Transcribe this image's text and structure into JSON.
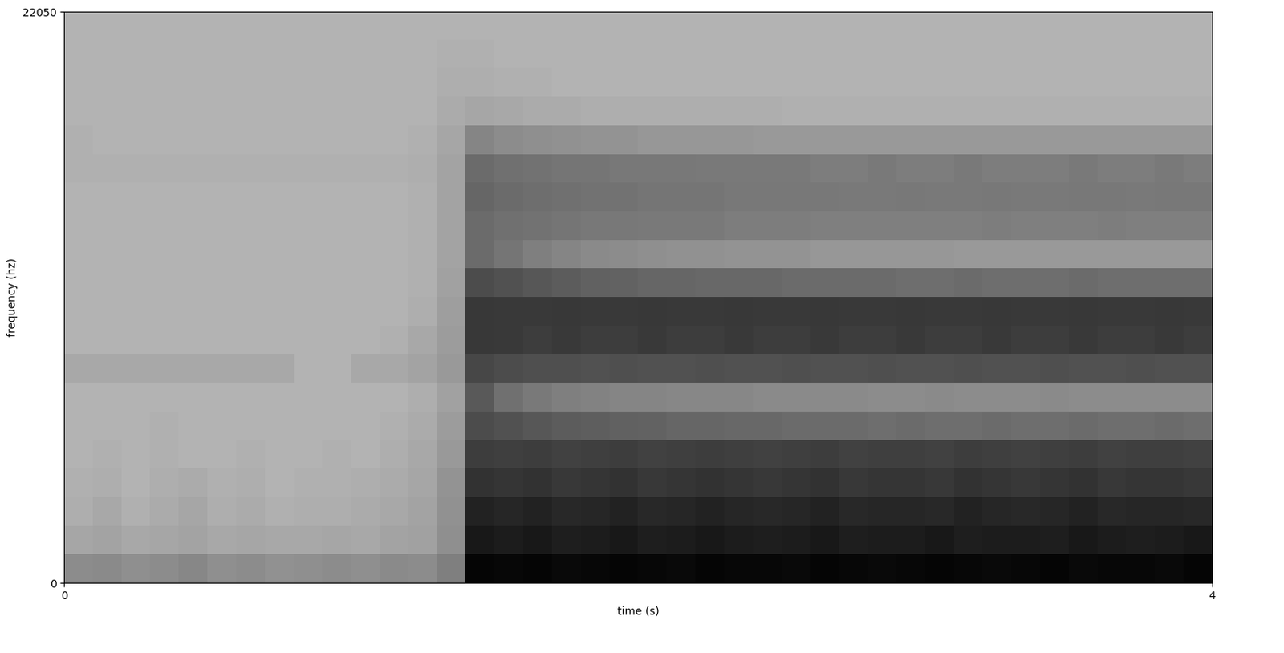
{
  "chart_data": {
    "type": "heatmap",
    "xlabel": "time (s)",
    "ylabel": "frequency (hz)",
    "xlim": [
      0,
      4
    ],
    "xticks": [
      0,
      4
    ],
    "ylim": [
      0,
      22050
    ],
    "yticks": [
      0,
      22050
    ],
    "color": "gray_r",
    "color_range": [
      0,
      10
    ],
    "values": [
      [
        4.5,
        4.6,
        4.4,
        4.5,
        4.7,
        4.4,
        4.5,
        4.3,
        4.4,
        4.5,
        4.4,
        4.6,
        4.5,
        5.0,
        9.8,
        9.7,
        9.8,
        9.6,
        9.7,
        9.8,
        9.7,
        9.6,
        9.8,
        9.7,
        9.7,
        9.6,
        9.8,
        9.7,
        9.6,
        9.7,
        9.8,
        9.7,
        9.6,
        9.7,
        9.8,
        9.6,
        9.7,
        9.7,
        9.6,
        9.8
      ],
      [
        3.5,
        3.6,
        3.4,
        3.5,
        3.6,
        3.4,
        3.5,
        3.4,
        3.4,
        3.5,
        3.4,
        3.6,
        3.7,
        4.4,
        9.0,
        8.9,
        9.0,
        8.8,
        8.9,
        9.0,
        8.8,
        8.9,
        9.0,
        8.9,
        8.8,
        8.9,
        9.0,
        8.8,
        8.9,
        8.9,
        9.0,
        8.8,
        8.9,
        8.9,
        8.8,
        9.0,
        8.9,
        8.8,
        8.9,
        9.0
      ],
      [
        3.2,
        3.4,
        3.1,
        3.3,
        3.5,
        3.2,
        3.3,
        3.1,
        3.2,
        3.2,
        3.3,
        3.4,
        3.6,
        4.3,
        8.6,
        8.5,
        8.6,
        8.4,
        8.5,
        8.6,
        8.4,
        8.5,
        8.6,
        8.5,
        8.4,
        8.5,
        8.6,
        8.4,
        8.5,
        8.5,
        8.4,
        8.6,
        8.5,
        8.4,
        8.5,
        8.6,
        8.4,
        8.5,
        8.5,
        8.4
      ],
      [
        3.1,
        3.2,
        3.0,
        3.2,
        3.3,
        3.1,
        3.2,
        3.0,
        3.1,
        3.1,
        3.2,
        3.3,
        3.5,
        4.2,
        8.0,
        7.9,
        8.0,
        7.8,
        7.9,
        8.0,
        7.8,
        7.9,
        8.0,
        7.9,
        7.8,
        7.9,
        8.0,
        7.8,
        7.9,
        7.9,
        7.8,
        8.0,
        7.9,
        7.8,
        7.9,
        8.0,
        7.8,
        7.9,
        7.9,
        7.8
      ],
      [
        3.0,
        3.1,
        3.0,
        3.1,
        3.0,
        3.0,
        3.1,
        3.0,
        3.0,
        3.1,
        3.0,
        3.2,
        3.4,
        4.0,
        7.6,
        7.5,
        7.6,
        7.4,
        7.5,
        7.6,
        7.4,
        7.5,
        7.6,
        7.5,
        7.4,
        7.5,
        7.6,
        7.4,
        7.5,
        7.5,
        7.4,
        7.6,
        7.5,
        7.4,
        7.5,
        7.6,
        7.4,
        7.5,
        7.5,
        7.4
      ],
      [
        3.0,
        3.0,
        3.0,
        3.1,
        3.0,
        3.0,
        3.0,
        3.0,
        3.0,
        3.0,
        3.0,
        3.1,
        3.3,
        3.9,
        7.0,
        6.8,
        6.6,
        6.4,
        6.3,
        6.2,
        6.1,
        6.0,
        6.0,
        5.9,
        5.9,
        5.8,
        5.8,
        5.8,
        5.7,
        5.8,
        5.7,
        5.7,
        5.8,
        5.7,
        5.7,
        5.8,
        5.7,
        5.7,
        5.8,
        5.7
      ],
      [
        3.0,
        3.0,
        3.0,
        3.0,
        3.0,
        3.0,
        3.0,
        3.0,
        3.0,
        3.0,
        3.0,
        3.0,
        3.2,
        3.7,
        6.5,
        5.6,
        5.2,
        5.0,
        4.9,
        4.8,
        4.8,
        4.7,
        4.7,
        4.7,
        4.6,
        4.6,
        4.6,
        4.6,
        4.5,
        4.5,
        4.6,
        4.5,
        4.5,
        4.5,
        4.6,
        4.5,
        4.5,
        4.5,
        4.5,
        4.5
      ],
      [
        3.4,
        3.4,
        3.4,
        3.4,
        3.4,
        3.4,
        3.4,
        3.4,
        3.0,
        3.0,
        3.4,
        3.4,
        3.6,
        4.0,
        7.2,
        7.0,
        6.9,
        6.9,
        6.8,
        6.9,
        6.8,
        6.8,
        6.9,
        6.8,
        6.8,
        6.9,
        6.8,
        6.8,
        6.9,
        6.8,
        6.8,
        6.9,
        6.8,
        6.8,
        6.9,
        6.8,
        6.8,
        6.9,
        6.8,
        6.8
      ],
      [
        3.0,
        3.0,
        3.0,
        3.0,
        3.0,
        3.0,
        3.0,
        3.0,
        3.0,
        3.0,
        3.0,
        3.1,
        3.4,
        3.9,
        7.8,
        7.7,
        7.6,
        7.7,
        7.6,
        7.6,
        7.7,
        7.6,
        7.6,
        7.7,
        7.6,
        7.6,
        7.7,
        7.6,
        7.6,
        7.7,
        7.6,
        7.6,
        7.7,
        7.6,
        7.6,
        7.7,
        7.6,
        7.6,
        7.7,
        7.6
      ],
      [
        3.0,
        3.0,
        3.0,
        3.0,
        3.0,
        3.0,
        3.0,
        3.0,
        3.0,
        3.0,
        3.0,
        3.0,
        3.2,
        3.8,
        7.8,
        7.7,
        7.7,
        7.8,
        7.7,
        7.7,
        7.8,
        7.7,
        7.7,
        7.8,
        7.7,
        7.7,
        7.8,
        7.7,
        7.7,
        7.8,
        7.7,
        7.7,
        7.8,
        7.7,
        7.7,
        7.8,
        7.7,
        7.7,
        7.8,
        7.7
      ],
      [
        3.0,
        3.0,
        3.0,
        3.0,
        3.0,
        3.0,
        3.0,
        3.0,
        3.0,
        3.0,
        3.0,
        3.0,
        3.1,
        3.7,
        7.0,
        6.8,
        6.6,
        6.4,
        6.2,
        6.1,
        6.0,
        6.0,
        5.9,
        5.9,
        5.9,
        5.8,
        5.8,
        5.8,
        5.8,
        5.7,
        5.7,
        5.8,
        5.7,
        5.7,
        5.7,
        5.8,
        5.7,
        5.7,
        5.7,
        5.7
      ],
      [
        3.0,
        3.0,
        3.0,
        3.0,
        3.0,
        3.0,
        3.0,
        3.0,
        3.0,
        3.0,
        3.0,
        3.0,
        3.1,
        3.6,
        5.8,
        5.4,
        5.0,
        4.8,
        4.6,
        4.5,
        4.4,
        4.3,
        4.3,
        4.2,
        4.2,
        4.2,
        4.1,
        4.1,
        4.1,
        4.1,
        4.1,
        4.0,
        4.0,
        4.0,
        4.0,
        4.0,
        4.0,
        4.0,
        4.0,
        4.0
      ],
      [
        3.0,
        3.0,
        3.0,
        3.0,
        3.0,
        3.0,
        3.0,
        3.0,
        3.0,
        3.0,
        3.0,
        3.0,
        3.1,
        3.6,
        5.8,
        5.6,
        5.5,
        5.4,
        5.3,
        5.3,
        5.2,
        5.2,
        5.2,
        5.1,
        5.1,
        5.1,
        5.0,
        5.0,
        5.0,
        5.0,
        5.0,
        5.0,
        5.1,
        5.0,
        5.0,
        5.0,
        5.1,
        5.0,
        5.0,
        5.0
      ],
      [
        3.0,
        3.0,
        3.0,
        3.0,
        3.0,
        3.0,
        3.0,
        3.0,
        3.0,
        3.0,
        3.0,
        3.0,
        3.1,
        3.6,
        6.0,
        5.8,
        5.7,
        5.6,
        5.5,
        5.5,
        5.4,
        5.4,
        5.4,
        5.3,
        5.3,
        5.3,
        5.3,
        5.2,
        5.2,
        5.3,
        5.2,
        5.2,
        5.3,
        5.2,
        5.2,
        5.3,
        5.3,
        5.2,
        5.3,
        5.3
      ],
      [
        3.1,
        3.1,
        3.1,
        3.1,
        3.1,
        3.1,
        3.1,
        3.1,
        3.1,
        3.1,
        3.1,
        3.1,
        3.2,
        3.6,
        5.8,
        5.6,
        5.5,
        5.4,
        5.4,
        5.3,
        5.3,
        5.3,
        5.2,
        5.2,
        5.2,
        5.2,
        5.1,
        5.1,
        5.2,
        5.1,
        5.1,
        5.2,
        5.1,
        5.1,
        5.1,
        5.2,
        5.1,
        5.1,
        5.2,
        5.1
      ],
      [
        3.1,
        3.0,
        3.0,
        3.0,
        3.0,
        3.0,
        3.0,
        3.0,
        3.0,
        3.0,
        3.0,
        3.0,
        3.1,
        3.5,
        4.8,
        4.5,
        4.4,
        4.3,
        4.2,
        4.2,
        4.1,
        4.1,
        4.1,
        4.1,
        4.0,
        4.0,
        4.0,
        4.0,
        4.0,
        4.0,
        4.0,
        4.0,
        4.0,
        4.0,
        4.0,
        4.0,
        4.0,
        4.0,
        4.0,
        4.0
      ],
      [
        3.0,
        3.0,
        3.0,
        3.0,
        3.0,
        3.0,
        3.0,
        3.0,
        3.0,
        3.0,
        3.0,
        3.0,
        3.0,
        3.3,
        3.5,
        3.4,
        3.3,
        3.3,
        3.2,
        3.2,
        3.2,
        3.2,
        3.2,
        3.2,
        3.2,
        3.1,
        3.1,
        3.1,
        3.1,
        3.1,
        3.1,
        3.1,
        3.1,
        3.1,
        3.1,
        3.1,
        3.1,
        3.1,
        3.1,
        3.1
      ],
      [
        3.0,
        3.0,
        3.0,
        3.0,
        3.0,
        3.0,
        3.0,
        3.0,
        3.0,
        3.0,
        3.0,
        3.0,
        3.0,
        3.2,
        3.2,
        3.1,
        3.1,
        3.0,
        3.0,
        3.0,
        3.0,
        3.0,
        3.0,
        3.0,
        3.0,
        3.0,
        3.0,
        3.0,
        3.0,
        3.0,
        3.0,
        3.0,
        3.0,
        3.0,
        3.0,
        3.0,
        3.0,
        3.0,
        3.0,
        3.0
      ],
      [
        3.0,
        3.0,
        3.0,
        3.0,
        3.0,
        3.0,
        3.0,
        3.0,
        3.0,
        3.0,
        3.0,
        3.0,
        3.0,
        3.1,
        3.1,
        3.0,
        3.0,
        3.0,
        3.0,
        3.0,
        3.0,
        3.0,
        3.0,
        3.0,
        3.0,
        3.0,
        3.0,
        3.0,
        3.0,
        3.0,
        3.0,
        3.0,
        3.0,
        3.0,
        3.0,
        3.0,
        3.0,
        3.0,
        3.0,
        3.0
      ],
      [
        3.0,
        3.0,
        3.0,
        3.0,
        3.0,
        3.0,
        3.0,
        3.0,
        3.0,
        3.0,
        3.0,
        3.0,
        3.0,
        3.0,
        3.0,
        3.0,
        3.0,
        3.0,
        3.0,
        3.0,
        3.0,
        3.0,
        3.0,
        3.0,
        3.0,
        3.0,
        3.0,
        3.0,
        3.0,
        3.0,
        3.0,
        3.0,
        3.0,
        3.0,
        3.0,
        3.0,
        3.0,
        3.0,
        3.0,
        3.0
      ]
    ]
  }
}
